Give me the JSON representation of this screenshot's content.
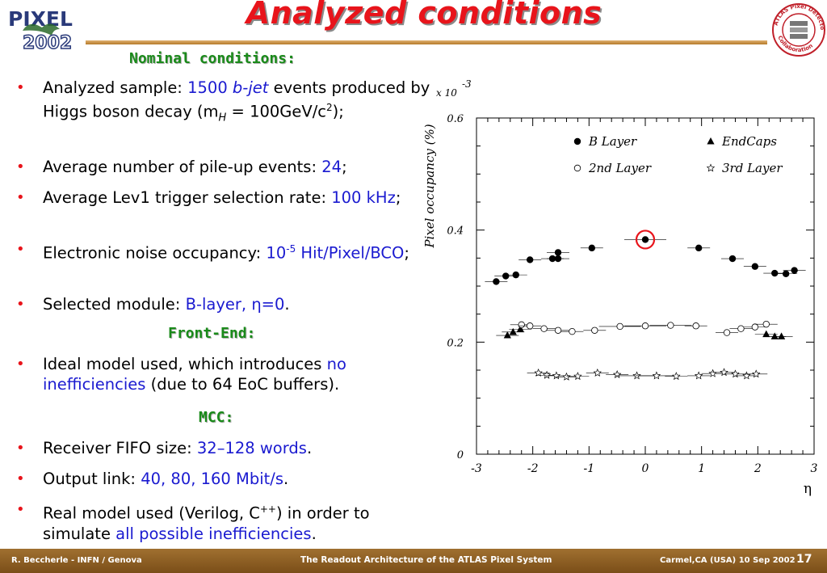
{
  "slide": {
    "title": "Analyzed conditions",
    "logo_left_text": [
      "PIXEL",
      "2002"
    ],
    "logo_right_text": "ATLAS Pixel Detector Collaboration",
    "section_nominal": "Nominal conditions:",
    "section_frontend": "Front-End:",
    "section_mcc": "MCC:"
  },
  "bullets": [
    {
      "parts": [
        {
          "t": "Analyzed sample: ",
          "c": "k"
        },
        {
          "t": "1500 ",
          "c": "b"
        },
        {
          "t": "b-jet",
          "c": "bi"
        },
        {
          "t": " events produced by Higgs boson decay (m",
          "c": "k"
        },
        {
          "t": "H",
          "c": "sub"
        },
        {
          "t": " = 100GeV/c",
          "c": "k"
        },
        {
          "t": "2",
          "c": "sup"
        },
        {
          "t": ");",
          "c": "k"
        }
      ]
    },
    {
      "parts": [
        {
          "t": "Average number of pile-up events: ",
          "c": "k"
        },
        {
          "t": "24",
          "c": "b"
        },
        {
          "t": ";",
          "c": "k"
        }
      ]
    },
    {
      "parts": [
        {
          "t": "Average Lev1 trigger selection rate: ",
          "c": "k"
        },
        {
          "t": "100 kHz",
          "c": "b"
        },
        {
          "t": ";",
          "c": "k"
        }
      ]
    },
    {
      "parts": [
        {
          "t": "Electronic noise occupancy: ",
          "c": "k"
        },
        {
          "t": "10",
          "c": "b"
        },
        {
          "t": "-5",
          "c": "bsup"
        },
        {
          "t": " Hit/Pixel/BCO",
          "c": "b"
        },
        {
          "t": ";",
          "c": "k"
        }
      ]
    },
    {
      "parts": [
        {
          "t": "Selected module: ",
          "c": "k"
        },
        {
          "t": "B-layer, ",
          "c": "b"
        },
        {
          "t": "η",
          "c": "b"
        },
        {
          "t": "=0",
          "c": "b"
        },
        {
          "t": ".",
          "c": "k"
        }
      ]
    },
    {
      "parts": [
        {
          "t": "Ideal model used, which introduces ",
          "c": "k"
        },
        {
          "t": "no inefficiencies",
          "c": "b"
        },
        {
          "t": " (due to 64 EoC buffers).",
          "c": "k"
        }
      ]
    },
    {
      "parts": [
        {
          "t": "Receiver FIFO size: ",
          "c": "k"
        },
        {
          "t": "32–128 words",
          "c": "b"
        },
        {
          "t": ".",
          "c": "k"
        }
      ]
    },
    {
      "parts": [
        {
          "t": "Output link: ",
          "c": "k"
        },
        {
          "t": "40, 80, 160 Mbit/s",
          "c": "b"
        },
        {
          "t": ".",
          "c": "k"
        }
      ]
    },
    {
      "parts": [
        {
          "t": "Real model used (Verilog, C",
          "c": "k"
        },
        {
          "t": "++",
          "c": "sup"
        },
        {
          "t": ") in order to simulate ",
          "c": "k"
        },
        {
          "t": "all possible inefficiencies",
          "c": "b"
        },
        {
          "t": ".",
          "c": "k"
        }
      ]
    }
  ],
  "footer": {
    "left": "R. Beccherle - INFN / Genova",
    "center": "The Readout Architecture of the ATLAS Pixel System",
    "right": "Carmel,CA (USA) 10 Sep 2002",
    "page": "17"
  },
  "chart_data": {
    "type": "scatter",
    "title": "",
    "xlabel": "η",
    "ylabel": "Pixel occupancy (%)",
    "y_multiplier": "x 10",
    "y_multiplier_exp": "-3",
    "xlim": [
      -3,
      3
    ],
    "ylim": [
      0,
      0.6
    ],
    "x_ticks": [
      "-3",
      "-2",
      "-1",
      "0",
      "1",
      "2",
      "3"
    ],
    "y_ticks": [
      "0",
      "0.2",
      "0.4",
      "0.6"
    ],
    "legend_position": "top-right",
    "highlight": {
      "series": "B Layer",
      "x": 0.0,
      "y": 0.383,
      "color": "#e8141b"
    },
    "series": [
      {
        "name": "B Layer",
        "marker": "filled-circle",
        "x": [
          -2.65,
          -2.48,
          -2.3,
          -2.05,
          -1.55,
          -1.65,
          -0.95,
          0.0,
          0.95,
          1.55,
          1.95,
          2.3,
          2.5,
          2.65,
          -1.55
        ],
        "y": [
          0.308,
          0.318,
          0.32,
          0.347,
          0.36,
          0.349,
          0.368,
          0.383,
          0.368,
          0.349,
          0.335,
          0.323,
          0.322,
          0.328,
          0.349
        ]
      },
      {
        "name": "EndCaps",
        "marker": "filled-triangle",
        "x": [
          -2.45,
          -2.35,
          -2.22,
          2.15,
          2.3,
          2.42
        ],
        "y": [
          0.212,
          0.218,
          0.223,
          0.214,
          0.21,
          0.21
        ]
      },
      {
        "name": "2nd Layer",
        "marker": "open-circle",
        "x": [
          -2.2,
          -2.05,
          -1.8,
          -1.55,
          -1.3,
          -0.9,
          -0.45,
          0.0,
          0.45,
          0.9,
          1.45,
          1.7,
          1.95,
          2.15
        ],
        "y": [
          0.231,
          0.229,
          0.224,
          0.221,
          0.219,
          0.221,
          0.228,
          0.229,
          0.23,
          0.229,
          0.217,
          0.224,
          0.227,
          0.232
        ]
      },
      {
        "name": "3rd Layer",
        "marker": "open-star",
        "x": [
          -1.9,
          -1.75,
          -1.58,
          -1.4,
          -1.2,
          -0.85,
          -0.5,
          -0.15,
          0.2,
          0.55,
          0.95,
          1.2,
          1.4,
          1.6,
          1.8,
          1.97
        ],
        "y": [
          0.145,
          0.141,
          0.14,
          0.138,
          0.139,
          0.145,
          0.142,
          0.14,
          0.14,
          0.139,
          0.14,
          0.144,
          0.146,
          0.143,
          0.14,
          0.143
        ]
      }
    ]
  }
}
